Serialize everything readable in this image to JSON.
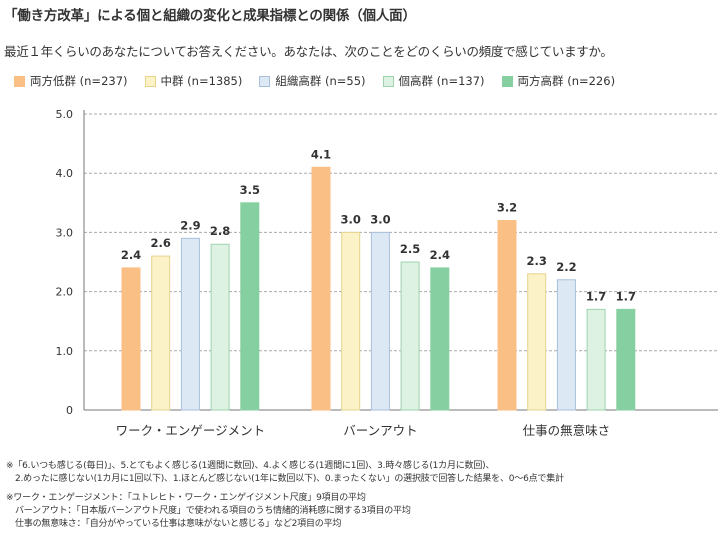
{
  "title": "「働き方改革」による個と組織の変化と成果指標との関係（個人面）",
  "question": "最近１年くらいのあなたについてお答えください。あなたは、次のことをどのくらいの頻度で感じていますか。",
  "legend": [
    {
      "label": "両方低群 (n=237)",
      "color": "#F9BF84",
      "border": "#F9BF84"
    },
    {
      "label": "中群 (n=1385)",
      "color": "#FBF2C7",
      "border": "#E6D48C"
    },
    {
      "label": "組織高群 (n=55)",
      "color": "#DDE8F5",
      "border": "#A9BFDA"
    },
    {
      "label": "個高群 (n=137)",
      "color": "#DDF2E3",
      "border": "#9ED3AE"
    },
    {
      "label": "両方高群 (n=226)",
      "color": "#85CFA1",
      "border": "#85CFA1"
    }
  ],
  "chart_data": {
    "type": "bar",
    "title": "「働き方改革」による個と組織の変化と成果指標との関係（個人面）",
    "categories": [
      "ワーク・エンゲージメント",
      "バーンアウト",
      "仕事の無意味さ"
    ],
    "series": [
      {
        "name": "両方低群 (n=237)",
        "values": [
          2.4,
          4.1,
          3.2
        ]
      },
      {
        "name": "中群 (n=1385)",
        "values": [
          2.6,
          3.0,
          2.3
        ]
      },
      {
        "name": "組織高群 (n=55)",
        "values": [
          2.9,
          3.0,
          2.2
        ]
      },
      {
        "name": "個高群 (n=137)",
        "values": [
          2.8,
          2.5,
          1.7
        ]
      },
      {
        "name": "両方高群 (n=226)",
        "values": [
          3.5,
          2.4,
          1.7
        ]
      }
    ],
    "yticks": [
      "0",
      "1.0",
      "2.0",
      "3.0",
      "4.0",
      "5.0"
    ],
    "ylim": [
      0,
      5
    ],
    "xlabel": "",
    "ylabel": ""
  },
  "notes": [
    "※「6.いつも感じる(毎日)」、5.とてもよく感じる(1週間に数回)、4.よく感じる(1週間に1回)、3.時々感じる(1カ月に数回)、",
    "2.めったに感じない(1カ月に1回以下)、1.ほとんど感じない(1年に数回以下)、0.まったくない」の選択肢で回答した結果を、0～6点で集計",
    "※ワーク・エンゲージメント：「ユトレヒト・ワーク・エンゲイジメント尺度」9項目の平均",
    "バーンアウト：「日本版バーンアウト尺度」で使われる項目のうち情緒的消耗感に関する3項目の平均",
    "仕事の無意味さ：「自分がやっている仕事は意味がないと感じる」など2項目の平均"
  ]
}
